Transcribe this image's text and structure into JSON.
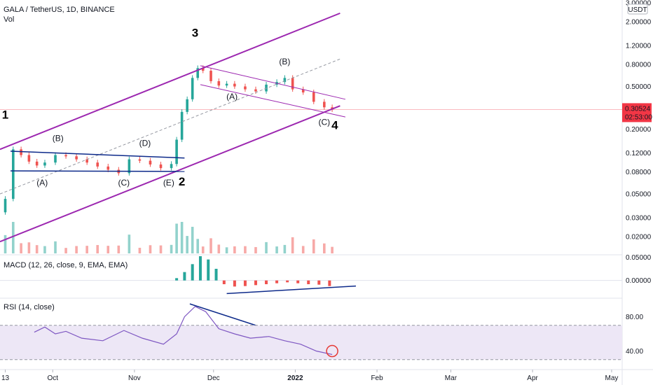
{
  "header": {
    "title": "GALA / TetherUS, 1D, BINANCE",
    "volume_label": "Vol",
    "macd_label": "MACD (12, 26, close, 9, EMA, EMA)",
    "rsi_label": "RSI (14, close)"
  },
  "currency_badge": "USDT",
  "last_price": {
    "price": "0.30524",
    "countdown": "02:53:00",
    "value": 0.30524,
    "color": "#f23645"
  },
  "colors": {
    "up": "#26a69a",
    "down": "#ef5350",
    "channel": "#9c27b0",
    "trendline": "#0d2a8a",
    "macd_line": "#2962ff",
    "signal_line": "#ff6d00",
    "rsi_line": "#7e57c2",
    "rsi_band": "#ede7f6"
  },
  "chart_data": [
    {
      "type": "candlestick",
      "title": "GALA / TetherUS, 1D, BINANCE",
      "y_scale": "log",
      "ylim": [
        0.014,
        3.0
      ],
      "y_ticks": [
        "3.00000",
        "2.00000",
        "1.20000",
        "0.80000",
        "0.50000",
        "0.30000",
        "0.20000",
        "0.12000",
        "0.08000",
        "0.05000",
        "0.03000",
        "0.02000"
      ],
      "x_ticks": [
        "13",
        "Oct",
        "Nov",
        "Dec",
        "2022",
        "Feb",
        "Mar",
        "Apr",
        "May"
      ],
      "x_range": [
        "2021-09-11",
        "2022-05-05"
      ],
      "closes": [
        [
          "2021-09-13",
          0.045
        ],
        [
          "2021-09-16",
          0.13
        ],
        [
          "2021-09-19",
          0.115
        ],
        [
          "2021-09-22",
          0.1
        ],
        [
          "2021-09-25",
          0.092
        ],
        [
          "2021-09-28",
          0.098
        ],
        [
          "2021-10-02",
          0.115
        ],
        [
          "2021-10-06",
          0.112
        ],
        [
          "2021-10-10",
          0.105
        ],
        [
          "2021-10-14",
          0.098
        ],
        [
          "2021-10-18",
          0.09
        ],
        [
          "2021-10-22",
          0.084
        ],
        [
          "2021-10-26",
          0.078
        ],
        [
          "2021-10-30",
          0.105
        ],
        [
          "2021-11-03",
          0.102
        ],
        [
          "2021-11-07",
          0.094
        ],
        [
          "2021-11-11",
          0.087
        ],
        [
          "2021-11-15",
          0.095
        ],
        [
          "2021-11-17",
          0.16
        ],
        [
          "2021-11-19",
          0.29
        ],
        [
          "2021-11-21",
          0.38
        ],
        [
          "2021-11-23",
          0.6
        ],
        [
          "2021-11-25",
          0.74
        ],
        [
          "2021-11-27",
          0.7
        ],
        [
          "2021-11-30",
          0.56
        ],
        [
          "2021-12-03",
          0.51
        ],
        [
          "2021-12-06",
          0.53
        ],
        [
          "2021-12-09",
          0.5
        ],
        [
          "2021-12-13",
          0.47
        ],
        [
          "2021-12-17",
          0.45
        ],
        [
          "2021-12-21",
          0.52
        ],
        [
          "2021-12-25",
          0.55
        ],
        [
          "2021-12-28",
          0.6
        ],
        [
          "2021-12-31",
          0.47
        ],
        [
          "2022-01-04",
          0.44
        ],
        [
          "2022-01-08",
          0.36
        ],
        [
          "2022-01-12",
          0.32
        ],
        [
          "2022-01-15",
          0.305
        ]
      ],
      "annotations": [
        {
          "text": "1",
          "x": "2021-09-13",
          "y": 0.25
        },
        {
          "text": "(B)",
          "x": "2021-10-03",
          "y": 0.155
        },
        {
          "text": "(A)",
          "x": "2021-09-27",
          "y": 0.06
        },
        {
          "text": "(D)",
          "x": "2021-11-05",
          "y": 0.14
        },
        {
          "text": "(C)",
          "x": "2021-10-28",
          "y": 0.06
        },
        {
          "text": "(E)",
          "x": "2021-11-14",
          "y": 0.06
        },
        {
          "text": "2",
          "x": "2021-11-19",
          "y": 0.06
        },
        {
          "text": "3",
          "x": "2021-11-24",
          "y": 1.45
        },
        {
          "text": "(A)",
          "x": "2021-12-08",
          "y": 0.38
        },
        {
          "text": "(B)",
          "x": "2021-12-28",
          "y": 0.8
        },
        {
          "text": "(C)",
          "x": "2022-01-12",
          "y": 0.22
        },
        {
          "text": "4",
          "x": "2022-01-16",
          "y": 0.2
        }
      ]
    },
    {
      "type": "bar",
      "title": "MACD (12, 26, close, 9, EMA, EMA)",
      "y_ticks": [
        "0.05000",
        "0.00000"
      ],
      "ylim": [
        -0.035,
        0.055
      ],
      "histogram": [
        [
          "2021-11-17",
          0.005
        ],
        [
          "2021-11-20",
          0.018
        ],
        [
          "2021-11-23",
          0.035
        ],
        [
          "2021-11-26",
          0.052
        ],
        [
          "2021-11-29",
          0.045
        ],
        [
          "2021-12-02",
          0.025
        ],
        [
          "2021-12-05",
          -0.008
        ],
        [
          "2021-12-09",
          -0.013
        ],
        [
          "2021-12-13",
          -0.012
        ],
        [
          "2021-12-17",
          -0.01
        ],
        [
          "2021-12-21",
          -0.008
        ],
        [
          "2021-12-25",
          -0.006
        ],
        [
          "2021-12-29",
          -0.004
        ],
        [
          "2022-01-02",
          -0.006
        ],
        [
          "2022-01-06",
          -0.008
        ],
        [
          "2022-01-10",
          -0.009
        ],
        [
          "2022-01-14",
          -0.012
        ]
      ]
    },
    {
      "type": "line",
      "title": "RSI (14, close)",
      "y_ticks": [
        "80.00",
        "40.00"
      ],
      "ylim": [
        20,
        100
      ],
      "band": [
        30,
        70
      ],
      "values": [
        [
          "2021-09-24",
          62
        ],
        [
          "2021-09-28",
          68
        ],
        [
          "2021-10-02",
          60
        ],
        [
          "2021-10-06",
          63
        ],
        [
          "2021-10-12",
          55
        ],
        [
          "2021-10-20",
          52
        ],
        [
          "2021-10-28",
          64
        ],
        [
          "2021-11-04",
          55
        ],
        [
          "2021-11-12",
          48
        ],
        [
          "2021-11-17",
          60
        ],
        [
          "2021-11-20",
          80
        ],
        [
          "2021-11-24",
          92
        ],
        [
          "2021-11-28",
          86
        ],
        [
          "2021-12-03",
          66
        ],
        [
          "2021-12-09",
          60
        ],
        [
          "2021-12-15",
          55
        ],
        [
          "2021-12-22",
          57
        ],
        [
          "2021-12-28",
          52
        ],
        [
          "2022-01-03",
          48
        ],
        [
          "2022-01-09",
          40
        ],
        [
          "2022-01-15",
          36
        ]
      ]
    }
  ]
}
